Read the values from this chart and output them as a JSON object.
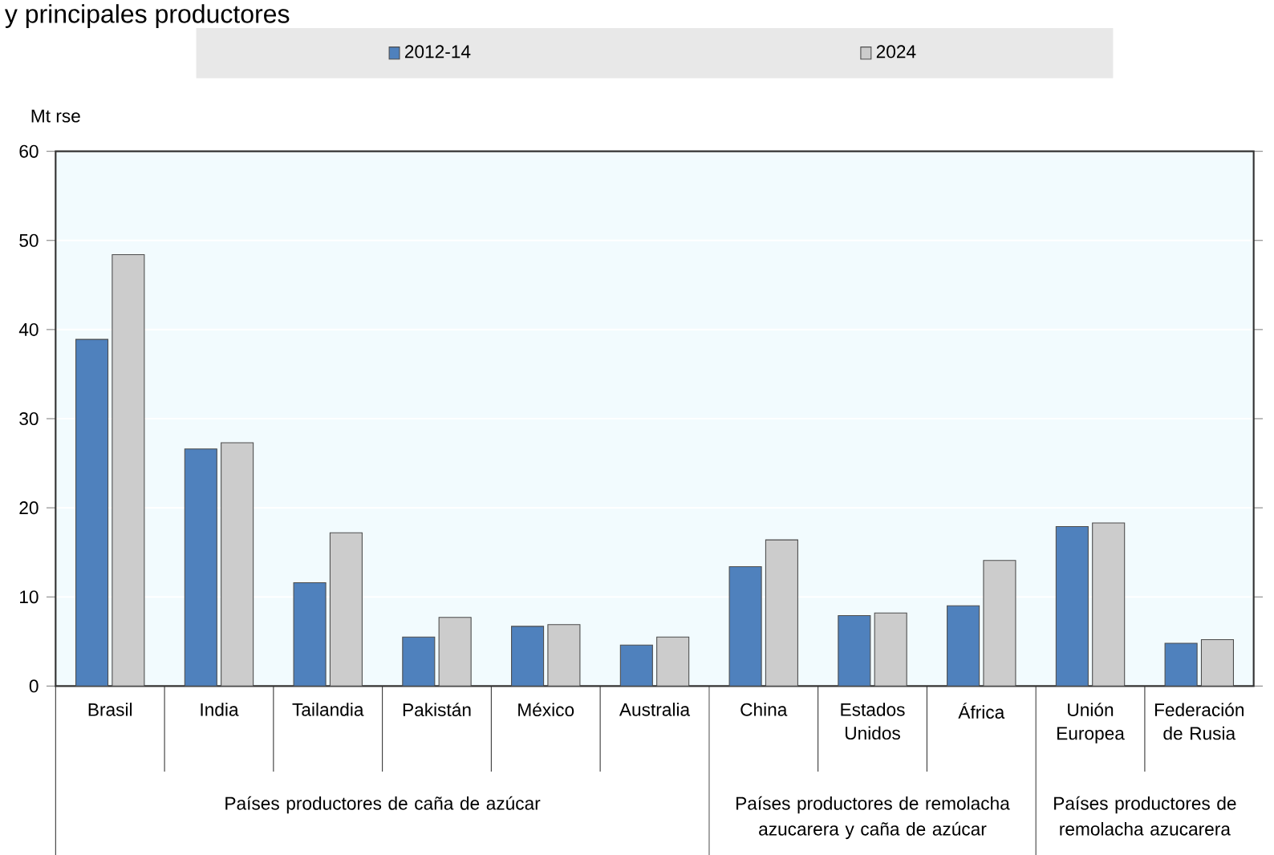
{
  "chart_data": {
    "type": "bar",
    "title": "y principales productores",
    "ylabel": "Mt rse",
    "categories": [
      "Brasil",
      "India",
      "Tailandia",
      "Pakistán",
      "México",
      "Australia",
      "China",
      "Estados Unidos",
      "África",
      "Unión Europea",
      "Federación de Rusia"
    ],
    "series": [
      {
        "name": "2012-14",
        "color": "#4f81bd",
        "values": [
          38.9,
          26.6,
          11.6,
          5.5,
          6.7,
          4.6,
          13.4,
          7.9,
          9.0,
          17.9,
          4.8
        ]
      },
      {
        "name": "2024",
        "color": "#cccccc",
        "values": [
          48.4,
          27.3,
          17.2,
          7.7,
          6.9,
          5.5,
          16.4,
          8.2,
          14.1,
          18.3,
          5.2
        ]
      }
    ],
    "ylim": [
      0,
      60
    ],
    "yticks": [
      0,
      10,
      20,
      30,
      40,
      50,
      60
    ],
    "grid": "y",
    "legend": "top",
    "annotations": [
      "Países productores de caña de azúcar",
      "Países productores de remolacha azucarera y caña de azúcar",
      "Países productores de remolacha azucarera"
    ]
  }
}
